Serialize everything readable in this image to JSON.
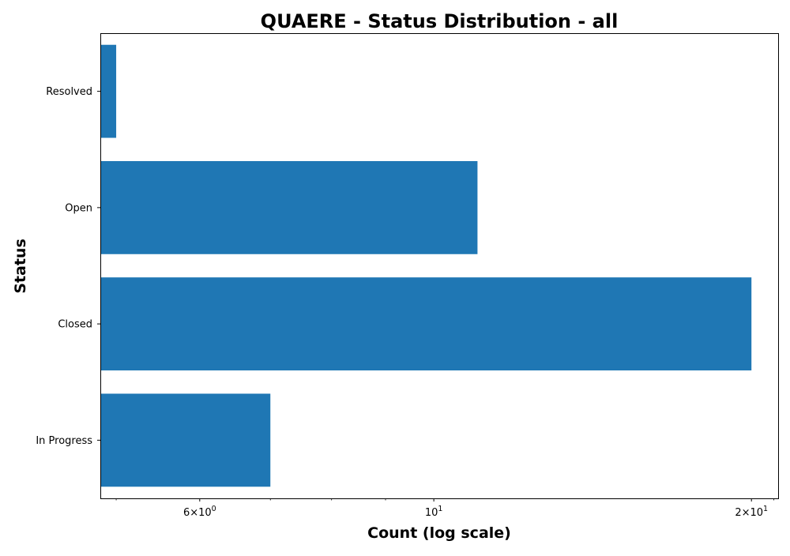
{
  "chart_data": {
    "type": "bar",
    "orientation": "horizontal",
    "title": "QUAERE - Status Distribution - all",
    "xlabel": "Count (log scale)",
    "ylabel": "Status",
    "x_scale": "log",
    "xlim": [
      4.83,
      21.2
    ],
    "categories": [
      "In Progress",
      "Closed",
      "Open",
      "Resolved"
    ],
    "values": [
      7,
      20,
      11,
      5
    ],
    "x_ticks": [
      {
        "value": 6,
        "base": "6",
        "sep": "×",
        "mantissa": "10",
        "exp": "0"
      },
      {
        "value": 10,
        "base": "",
        "sep": "",
        "mantissa": "10",
        "exp": "1"
      },
      {
        "value": 20,
        "base": "2",
        "sep": "×",
        "mantissa": "10",
        "exp": "1"
      }
    ],
    "grid": false,
    "bar_color": "#1f77b4"
  }
}
